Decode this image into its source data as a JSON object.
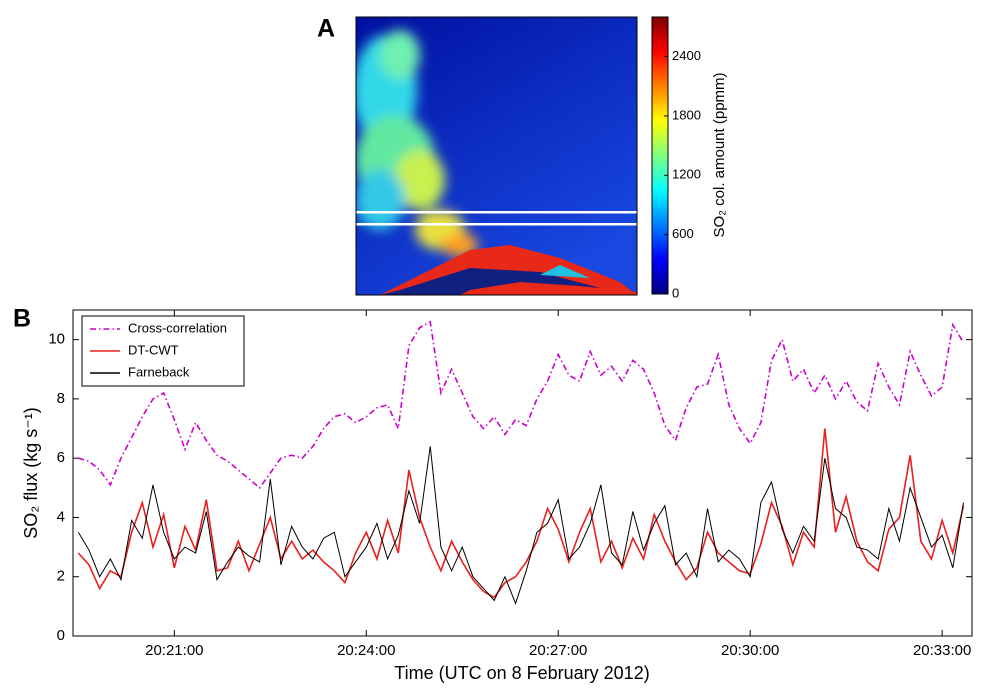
{
  "chart_data": [
    {
      "type": "image",
      "panel_label": "A",
      "colorbar": {
        "label": "SO₂ col. amount (ppmm)",
        "lim": [
          0,
          2800
        ],
        "ticks": [
          0,
          600,
          1200,
          1800,
          2400
        ]
      }
    },
    {
      "type": "line",
      "panel_label": "B",
      "xlabel": "Time (UTC on 8 February 2012)",
      "ylabel": "SO₂ flux (kg s⁻¹)",
      "xlim": [
        "20:19:25",
        "20:33:28"
      ],
      "xticks": [
        "20:21:00",
        "20:24:00",
        "20:27:00",
        "20:30:00",
        "20:33:00"
      ],
      "ylim": [
        0,
        11
      ],
      "yticks": [
        0,
        2,
        4,
        6,
        8,
        10
      ],
      "legend": "upper-left",
      "x": [
        "20:19:30",
        "20:19:40",
        "20:19:50",
        "20:20:00",
        "20:20:10",
        "20:20:20",
        "20:20:30",
        "20:20:40",
        "20:20:50",
        "20:21:00",
        "20:21:10",
        "20:21:20",
        "20:21:30",
        "20:21:40",
        "20:21:50",
        "20:22:00",
        "20:22:10",
        "20:22:20",
        "20:22:30",
        "20:22:40",
        "20:22:50",
        "20:23:00",
        "20:23:10",
        "20:23:20",
        "20:23:30",
        "20:23:40",
        "20:23:50",
        "20:24:00",
        "20:24:10",
        "20:24:20",
        "20:24:30",
        "20:24:40",
        "20:24:50",
        "20:25:00",
        "20:25:10",
        "20:25:20",
        "20:25:30",
        "20:25:40",
        "20:25:50",
        "20:26:00",
        "20:26:10",
        "20:26:20",
        "20:26:30",
        "20:26:40",
        "20:26:50",
        "20:27:00",
        "20:27:10",
        "20:27:20",
        "20:27:30",
        "20:27:40",
        "20:27:50",
        "20:28:00",
        "20:28:10",
        "20:28:20",
        "20:28:30",
        "20:28:40",
        "20:28:50",
        "20:29:00",
        "20:29:10",
        "20:29:20",
        "20:29:30",
        "20:29:40",
        "20:29:50",
        "20:30:00",
        "20:30:10",
        "20:30:20",
        "20:30:30",
        "20:30:40",
        "20:30:50",
        "20:31:00",
        "20:31:10",
        "20:31:20",
        "20:31:30",
        "20:31:40",
        "20:31:50",
        "20:32:00",
        "20:32:10",
        "20:32:20",
        "20:32:30",
        "20:32:40",
        "20:32:50",
        "20:33:00",
        "20:33:10",
        "20:33:20"
      ],
      "series": [
        {
          "name": "Cross-correlation",
          "color": "#cc00cc",
          "linestyle": "dashed",
          "values": [
            6.0,
            5.9,
            5.6,
            5.1,
            6.0,
            6.7,
            7.4,
            8.0,
            8.2,
            7.3,
            6.3,
            7.2,
            6.6,
            6.1,
            5.9,
            5.6,
            5.3,
            5.0,
            5.5,
            6.0,
            6.1,
            6.0,
            6.4,
            7.0,
            7.4,
            7.5,
            7.2,
            7.4,
            7.7,
            7.8,
            7.0,
            9.8,
            10.4,
            10.6,
            8.2,
            9.0,
            8.2,
            7.4,
            7.0,
            7.4,
            6.8,
            7.3,
            7.1,
            8.0,
            8.6,
            9.5,
            8.8,
            8.6,
            9.6,
            8.8,
            9.1,
            8.6,
            9.3,
            9.0,
            8.2,
            7.1,
            6.6,
            7.7,
            8.4,
            8.5,
            9.5,
            7.8,
            7.0,
            6.5,
            7.2,
            9.3,
            10.0,
            8.6,
            9.0,
            8.2,
            8.8,
            8.0,
            8.6,
            7.9,
            7.6,
            9.2,
            8.4,
            7.8,
            9.6,
            8.8,
            8.1,
            8.4,
            10.5,
            9.9
          ]
        },
        {
          "name": "DT-CWT",
          "color": "#e8201e",
          "linestyle": "solid",
          "values": [
            2.8,
            2.4,
            1.6,
            2.2,
            2.0,
            3.5,
            4.5,
            3.0,
            4.1,
            2.3,
            3.7,
            2.9,
            4.6,
            2.2,
            2.3,
            3.2,
            2.2,
            3.1,
            4.0,
            2.6,
            3.2,
            2.6,
            2.9,
            2.5,
            2.2,
            1.8,
            2.8,
            3.5,
            2.6,
            3.9,
            2.8,
            5.6,
            4.0,
            3.0,
            2.2,
            3.2,
            2.5,
            1.9,
            1.5,
            1.3,
            1.8,
            2.0,
            2.5,
            3.2,
            4.3,
            3.6,
            2.5,
            3.5,
            4.3,
            2.5,
            3.2,
            2.3,
            3.3,
            2.6,
            4.1,
            3.2,
            2.5,
            1.9,
            2.3,
            3.5,
            2.8,
            2.5,
            2.2,
            2.1,
            3.1,
            4.5,
            3.7,
            2.4,
            3.5,
            3.0,
            7.0,
            3.5,
            4.7,
            3.2,
            2.5,
            2.2,
            3.6,
            4.0,
            6.1,
            3.2,
            2.6,
            3.9,
            2.8,
            4.4
          ]
        },
        {
          "name": "Farneback",
          "color": "#000000",
          "linestyle": "solid",
          "values": [
            3.5,
            2.9,
            2.0,
            2.6,
            1.9,
            3.9,
            3.3,
            5.1,
            3.5,
            2.6,
            3.0,
            2.8,
            4.2,
            1.9,
            2.5,
            3.0,
            2.7,
            2.5,
            5.3,
            2.4,
            3.7,
            3.0,
            2.6,
            3.3,
            3.5,
            2.0,
            2.5,
            3.0,
            3.8,
            2.6,
            3.4,
            4.9,
            3.8,
            6.4,
            3.0,
            2.2,
            3.0,
            2.0,
            1.6,
            1.2,
            2.0,
            1.1,
            2.2,
            3.5,
            3.8,
            4.6,
            2.6,
            3.0,
            3.8,
            5.1,
            2.8,
            2.4,
            4.2,
            2.9,
            3.8,
            4.4,
            2.4,
            2.8,
            2.0,
            4.3,
            2.5,
            2.9,
            2.6,
            2.0,
            4.5,
            5.2,
            3.6,
            2.8,
            3.7,
            3.2,
            6.0,
            4.3,
            4.0,
            3.0,
            2.9,
            2.6,
            4.3,
            3.2,
            5.0,
            4.0,
            3.0,
            3.4,
            2.3,
            4.5
          ]
        }
      ]
    }
  ]
}
